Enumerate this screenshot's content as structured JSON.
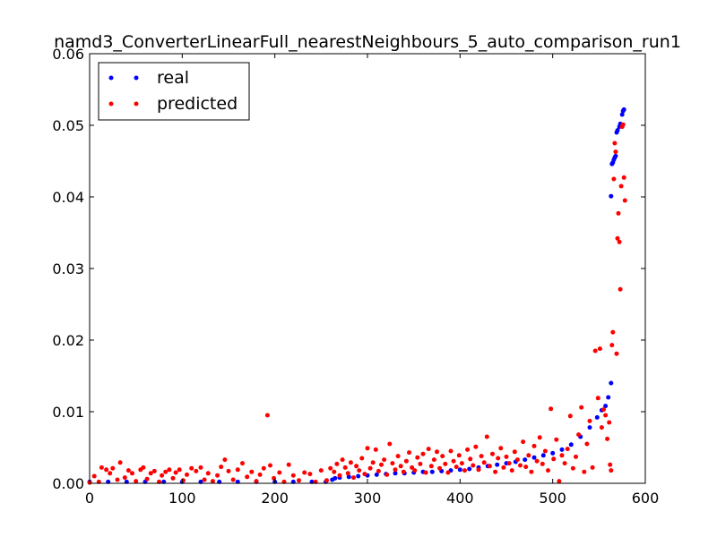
{
  "chart_data": {
    "type": "scatter",
    "title": "namd3_ConverterLinearFull_nearestNeighbours_5_auto_comparison_run1",
    "xlabel": "",
    "ylabel": "",
    "xlim": [
      0,
      600
    ],
    "ylim": [
      0,
      0.06
    ],
    "xticks": [
      0,
      100,
      200,
      300,
      400,
      500,
      600
    ],
    "xtick_labels": [
      "0",
      "100",
      "200",
      "300",
      "400",
      "500",
      "600"
    ],
    "yticks": [
      0.0,
      0.01,
      0.02,
      0.03,
      0.04,
      0.05,
      0.06
    ],
    "ytick_labels": [
      "0.00",
      "0.01",
      "0.02",
      "0.03",
      "0.04",
      "0.05",
      "0.06"
    ],
    "grid": false,
    "legend_position": "top-left",
    "series": [
      {
        "name": "real",
        "color": "#0000ff",
        "points": [
          [
            0,
            0.0002
          ],
          [
            20,
            0.0002
          ],
          [
            40,
            0.0002
          ],
          [
            60,
            0.0002
          ],
          [
            80,
            0.0002
          ],
          [
            100,
            0.0002
          ],
          [
            120,
            0.0002
          ],
          [
            140,
            0.0002
          ],
          [
            160,
            0.0002
          ],
          [
            180,
            0.0002
          ],
          [
            200,
            0.0002
          ],
          [
            220,
            0.0002
          ],
          [
            240,
            0.0002
          ],
          [
            255,
            0.0002
          ],
          [
            262,
            0.0005
          ],
          [
            265,
            0.0007
          ],
          [
            270,
            0.0008
          ],
          [
            280,
            0.0009
          ],
          [
            290,
            0.001
          ],
          [
            300,
            0.0011
          ],
          [
            310,
            0.0012
          ],
          [
            320,
            0.0013
          ],
          [
            330,
            0.0014
          ],
          [
            340,
            0.0014
          ],
          [
            350,
            0.0015
          ],
          [
            360,
            0.0016
          ],
          [
            370,
            0.0016
          ],
          [
            380,
            0.0017
          ],
          [
            390,
            0.0018
          ],
          [
            400,
            0.0019
          ],
          [
            410,
            0.002
          ],
          [
            420,
            0.0022
          ],
          [
            430,
            0.0024
          ],
          [
            440,
            0.0026
          ],
          [
            450,
            0.0028
          ],
          [
            460,
            0.003
          ],
          [
            470,
            0.0033
          ],
          [
            480,
            0.0036
          ],
          [
            490,
            0.0039
          ],
          [
            500,
            0.0042
          ],
          [
            510,
            0.0047
          ],
          [
            520,
            0.0054
          ],
          [
            530,
            0.0065
          ],
          [
            540,
            0.0078
          ],
          [
            548,
            0.0092
          ],
          [
            553,
            0.0102
          ],
          [
            557,
            0.0108
          ],
          [
            560,
            0.012
          ],
          [
            563,
            0.014
          ],
          [
            563,
            0.0401
          ],
          [
            564,
            0.0446
          ],
          [
            565,
            0.0448
          ],
          [
            566,
            0.0452
          ],
          [
            567,
            0.0455
          ],
          [
            568,
            0.0457
          ],
          [
            569,
            0.049
          ],
          [
            570,
            0.0493
          ],
          [
            572,
            0.0498
          ],
          [
            573,
            0.0502
          ],
          [
            575,
            0.0515
          ],
          [
            576,
            0.052
          ],
          [
            577,
            0.0522
          ]
        ]
      },
      {
        "name": "predicted",
        "color": "#ff0000",
        "points": [
          [
            0,
            0.0001
          ],
          [
            5,
            0.001
          ],
          [
            10,
            0.0002
          ],
          [
            13,
            0.0022
          ],
          [
            18,
            0.0019
          ],
          [
            22,
            0.0014
          ],
          [
            25,
            0.0021
          ],
          [
            30,
            0.0005
          ],
          [
            33,
            0.0029
          ],
          [
            38,
            0.0008
          ],
          [
            42,
            0.0018
          ],
          [
            46,
            0.0014
          ],
          [
            50,
            0.0003
          ],
          [
            55,
            0.0019
          ],
          [
            58,
            0.0022
          ],
          [
            62,
            0.0006
          ],
          [
            66,
            0.0014
          ],
          [
            70,
            0.0017
          ],
          [
            75,
            0.0002
          ],
          [
            78,
            0.0011
          ],
          [
            82,
            0.0016
          ],
          [
            86,
            0.0019
          ],
          [
            90,
            0.0007
          ],
          [
            93,
            0.0015
          ],
          [
            97,
            0.0019
          ],
          [
            101,
            0.0004
          ],
          [
            105,
            0.0012
          ],
          [
            110,
            0.0021
          ],
          [
            115,
            0.0017
          ],
          [
            120,
            0.0022
          ],
          [
            124,
            0.0005
          ],
          [
            128,
            0.0014
          ],
          [
            133,
            0.0003
          ],
          [
            138,
            0.0011
          ],
          [
            142,
            0.0023
          ],
          [
            146,
            0.0033
          ],
          [
            150,
            0.0017
          ],
          [
            155,
            0.0005
          ],
          [
            160,
            0.0019
          ],
          [
            165,
            0.0028
          ],
          [
            170,
            0.0009
          ],
          [
            175,
            0.0016
          ],
          [
            180,
            0.0003
          ],
          [
            184,
            0.0012
          ],
          [
            188,
            0.0021
          ],
          [
            192,
            0.0095
          ],
          [
            195,
            0.0025
          ],
          [
            199,
            0.0007
          ],
          [
            205,
            0.0015
          ],
          [
            210,
            0.0002
          ],
          [
            215,
            0.0026
          ],
          [
            220,
            0.0011
          ],
          [
            226,
            0.0004
          ],
          [
            232,
            0.0015
          ],
          [
            238,
            0.0013
          ],
          [
            244,
            0.0002
          ],
          [
            250,
            0.0018
          ],
          [
            256,
            0.0004
          ],
          [
            260,
            0.0021
          ],
          [
            264,
            0.0016
          ],
          [
            267,
            0.0027
          ],
          [
            270,
            0.0011
          ],
          [
            273,
            0.0033
          ],
          [
            276,
            0.0022
          ],
          [
            279,
            0.0014
          ],
          [
            282,
            0.0029
          ],
          [
            285,
            0.0008
          ],
          [
            288,
            0.0024
          ],
          [
            291,
            0.0018
          ],
          [
            294,
            0.0035
          ],
          [
            297,
            0.0013
          ],
          [
            300,
            0.0049
          ],
          [
            303,
            0.0021
          ],
          [
            306,
            0.0029
          ],
          [
            309,
            0.0047
          ],
          [
            312,
            0.0017
          ],
          [
            315,
            0.0026
          ],
          [
            318,
            0.0033
          ],
          [
            321,
            0.0012
          ],
          [
            324,
            0.0055
          ],
          [
            327,
            0.0028
          ],
          [
            330,
            0.0019
          ],
          [
            333,
            0.0038
          ],
          [
            336,
            0.0024
          ],
          [
            339,
            0.0016
          ],
          [
            342,
            0.0031
          ],
          [
            345,
            0.0043
          ],
          [
            348,
            0.0022
          ],
          [
            351,
            0.0018
          ],
          [
            354,
            0.0036
          ],
          [
            357,
            0.0027
          ],
          [
            360,
            0.0041
          ],
          [
            363,
            0.0015
          ],
          [
            366,
            0.0048
          ],
          [
            369,
            0.0024
          ],
          [
            372,
            0.0033
          ],
          [
            375,
            0.0044
          ],
          [
            378,
            0.0021
          ],
          [
            381,
            0.0038
          ],
          [
            384,
            0.0027
          ],
          [
            387,
            0.0015
          ],
          [
            390,
            0.0045
          ],
          [
            393,
            0.0031
          ],
          [
            396,
            0.0023
          ],
          [
            399,
            0.0039
          ],
          [
            402,
            0.0028
          ],
          [
            405,
            0.0018
          ],
          [
            408,
            0.0047
          ],
          [
            411,
            0.0034
          ],
          [
            414,
            0.0025
          ],
          [
            417,
            0.0051
          ],
          [
            420,
            0.0019
          ],
          [
            423,
            0.0038
          ],
          [
            426,
            0.0029
          ],
          [
            429,
            0.0065
          ],
          [
            432,
            0.0024
          ],
          [
            435,
            0.0041
          ],
          [
            438,
            0.0016
          ],
          [
            441,
            0.0035
          ],
          [
            444,
            0.0049
          ],
          [
            447,
            0.0022
          ],
          [
            450,
            0.0037
          ],
          [
            453,
            0.0028
          ],
          [
            456,
            0.0018
          ],
          [
            459,
            0.0044
          ],
          [
            462,
            0.0033
          ],
          [
            465,
            0.0025
          ],
          [
            468,
            0.0058
          ],
          [
            471,
            0.0023
          ],
          [
            474,
            0.0039
          ],
          [
            477,
            0.0016
          ],
          [
            480,
            0.0052
          ],
          [
            483,
            0.0031
          ],
          [
            486,
            0.0064
          ],
          [
            489,
            0.0027
          ],
          [
            492,
            0.0045
          ],
          [
            495,
            0.0018
          ],
          [
            498,
            0.0104
          ],
          [
            501,
            0.0034
          ],
          [
            504,
            0.0061
          ],
          [
            507,
            0.0003
          ],
          [
            510,
            0.0039
          ],
          [
            513,
            0.0028
          ],
          [
            516,
            0.0048
          ],
          [
            519,
            0.0094
          ],
          [
            522,
            0.0021
          ],
          [
            525,
            0.0037
          ],
          [
            528,
            0.0068
          ],
          [
            531,
            0.0106
          ],
          [
            534,
            0.0016
          ],
          [
            537,
            0.0055
          ],
          [
            540,
            0.0087
          ],
          [
            543,
            0.0022
          ],
          [
            546,
            0.0185
          ],
          [
            549,
            0.0119
          ],
          [
            551,
            0.0188
          ],
          [
            553,
            0.0078
          ],
          [
            555,
            0.0103
          ],
          [
            557,
            0.0095
          ],
          [
            559,
            0.0062
          ],
          [
            561,
            0.0085
          ],
          [
            562,
            0.0026
          ],
          [
            563,
            0.0018
          ],
          [
            564,
            0.0193
          ],
          [
            565,
            0.0211
          ],
          [
            566,
            0.0425
          ],
          [
            567,
            0.0475
          ],
          [
            568,
            0.0463
          ],
          [
            569,
            0.0181
          ],
          [
            570,
            0.0342
          ],
          [
            571,
            0.0377
          ],
          [
            572,
            0.0337
          ],
          [
            573,
            0.0271
          ],
          [
            574,
            0.0415
          ],
          [
            575,
            0.0498
          ],
          [
            576,
            0.0501
          ],
          [
            577,
            0.0427
          ],
          [
            578,
            0.0395
          ]
        ]
      }
    ]
  }
}
